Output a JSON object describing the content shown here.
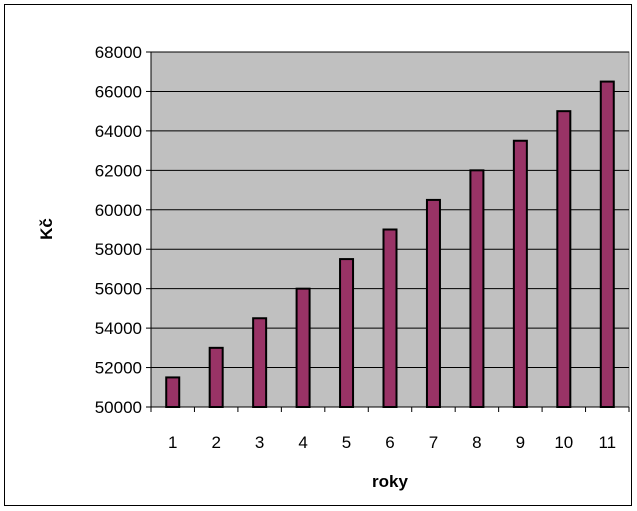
{
  "chart_data": {
    "type": "bar",
    "categories": [
      "1",
      "2",
      "3",
      "4",
      "5",
      "6",
      "7",
      "8",
      "9",
      "10",
      "11"
    ],
    "values": [
      51500,
      53000,
      54500,
      56000,
      57500,
      59000,
      60500,
      62000,
      63500,
      65000,
      66500
    ],
    "xlabel": "roky",
    "ylabel": "Kč",
    "ylim": [
      50000,
      68000
    ],
    "yticks": [
      50000,
      52000,
      54000,
      56000,
      58000,
      60000,
      62000,
      64000,
      66000,
      68000
    ],
    "grid": true,
    "legend": "none",
    "colors": {
      "bar_fill": "#993366",
      "bar_stroke": "#000000",
      "plot_background": "#c0c0c0",
      "gridline": "#000000"
    }
  }
}
